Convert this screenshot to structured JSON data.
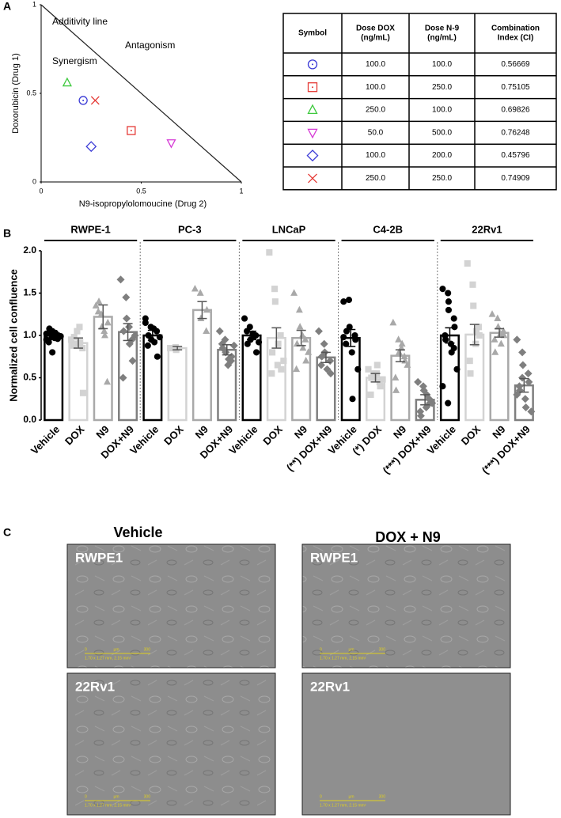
{
  "panel_labels": [
    "A",
    "B",
    "C"
  ],
  "chart_data": [
    {
      "type": "scatter",
      "xlabel": "N9-isopropylolomoucine (Drug 2)",
      "ylabel": "Doxorubicin (Drug 1)",
      "xlim": [
        0,
        1
      ],
      "ylim": [
        0,
        1
      ],
      "xticks": [
        0,
        0.5,
        1
      ],
      "yticks": [
        0,
        0.5,
        1
      ],
      "annotations": [
        "Additivity line",
        "Antagonism",
        "Synergism"
      ],
      "additivity_line": {
        "x": [
          0,
          1
        ],
        "y": [
          1,
          0
        ]
      },
      "series": [
        {
          "marker": "circle",
          "color": "#3b3bd6",
          "x": [
            0.21
          ],
          "y": [
            0.46
          ]
        },
        {
          "marker": "square",
          "color": "#e53935",
          "x": [
            0.45
          ],
          "y": [
            0.29
          ]
        },
        {
          "marker": "triangle",
          "color": "#3fc93f",
          "x": [
            0.13
          ],
          "y": [
            0.56
          ]
        },
        {
          "marker": "triangle-down",
          "color": "#d63bd6",
          "x": [
            0.65
          ],
          "y": [
            0.22
          ]
        },
        {
          "marker": "diamond",
          "color": "#3b3bd6",
          "x": [
            0.25
          ],
          "y": [
            0.2
          ]
        },
        {
          "marker": "x",
          "color": "#e53935",
          "x": [
            0.27
          ],
          "y": [
            0.46
          ]
        }
      ]
    },
    {
      "type": "bar",
      "ylabel": "Normalized cell confluence",
      "ylim": [
        0,
        2
      ],
      "yticks": [
        {
          "value": 0,
          "label": "0.0"
        },
        {
          "value": 0.5,
          "label": "0.5"
        },
        {
          "value": 1,
          "label": "1.0"
        },
        {
          "value": 1.5,
          "label": "1.5"
        },
        {
          "value": 2,
          "label": "2.0"
        }
      ],
      "groups": [
        "RWPE-1",
        "PC-3",
        "LNCaP",
        "C4-2B",
        "22Rv1"
      ],
      "categories": [
        "Vehicle",
        "DOX",
        "N9",
        "DOX+N9",
        "Vehicle",
        "DOX",
        "N9",
        "DOX+N9",
        "Vehicle",
        "DOX",
        "N9",
        "(**) DOX+N9",
        "Vehicle",
        "(*) DOX",
        "N9",
        "(***) DOX+N9",
        "Vehicle",
        "DOX",
        "N9",
        "(***) DOX+N9"
      ],
      "treatment_colors": [
        "#000000",
        "#d3d3d3",
        "#a9a9a9",
        "#7f7f7f"
      ],
      "treatment_markers": [
        "circle",
        "square",
        "triangle",
        "diamond"
      ],
      "values": [
        1.0,
        0.91,
        1.22,
        1.04,
        1.0,
        0.85,
        1.3,
        0.83,
        1.0,
        0.97,
        0.97,
        0.74,
        0.97,
        0.5,
        0.76,
        0.24,
        1.0,
        1.01,
        1.03,
        0.41
      ],
      "errors": [
        0.04,
        0.06,
        0.14,
        0.1,
        0.06,
        0.02,
        0.1,
        0.06,
        0.05,
        0.12,
        0.09,
        0.06,
        0.1,
        0.05,
        0.07,
        0.06,
        0.09,
        0.12,
        0.05,
        0.08
      ],
      "points": [
        [
          1.02,
          0.98,
          1.05,
          0.96,
          1.0,
          0.92,
          1.08,
          0.97,
          1.03,
          0.99,
          0.95,
          1.01,
          0.8
        ],
        [
          0.95,
          0.9,
          1.05,
          0.85,
          0.32,
          0.88,
          0.98,
          1.1,
          0.92
        ],
        [
          1.35,
          1.25,
          1.1,
          0.45,
          1.15,
          1.28,
          1.4,
          1.05,
          1.0
        ],
        [
          1.66,
          1.45,
          1.2,
          0.95,
          0.7,
          0.5,
          1.05,
          1.1,
          0.9,
          1.0
        ],
        [
          1.15,
          1.1,
          0.95,
          1.05,
          0.75,
          0.88,
          1.0,
          1.08,
          0.92,
          0.98,
          1.2
        ],
        [
          0.85,
          0.86,
          0.83
        ],
        [
          1.55,
          1.5,
          1.2,
          1.05,
          1.3
        ],
        [
          1.05,
          0.95,
          0.8,
          0.7,
          0.75,
          0.9,
          0.85,
          0.65,
          0.72,
          0.88
        ],
        [
          1.2,
          1.1,
          0.95,
          1.0,
          0.8,
          1.05,
          0.9,
          1.02,
          0.98,
          0.92
        ],
        [
          1.98,
          1.55,
          1.4,
          1.0,
          0.6,
          0.55,
          0.8,
          0.65,
          0.9,
          0.7
        ],
        [
          1.5,
          1.3,
          1.1,
          0.95,
          0.7,
          0.6,
          0.9,
          1.0,
          0.85,
          0.8
        ],
        [
          1.05,
          0.9,
          0.8,
          0.7,
          0.55,
          0.65,
          0.75,
          0.6
        ],
        [
          1.4,
          1.42,
          1.1,
          1.0,
          0.95,
          0.9,
          1.05,
          0.8,
          0.25,
          0.6,
          0.98
        ],
        [
          0.6,
          0.55,
          0.5,
          0.45,
          0.4,
          0.3,
          0.5,
          0.55,
          0.65,
          0.48
        ],
        [
          1.15,
          0.95,
          0.8,
          0.75,
          0.7,
          0.5,
          0.35,
          0.85,
          0.9,
          0.65
        ],
        [
          0.45,
          0.4,
          0.35,
          0.25,
          0.2,
          0.1,
          0.05,
          0.15,
          0.3,
          0.2
        ],
        [
          1.55,
          1.5,
          1.3,
          1.2,
          1.1,
          1.0,
          0.95,
          0.9,
          0.8,
          0.6,
          0.4,
          0.2,
          1.4,
          0.85
        ],
        [
          1.85,
          1.6,
          1.35,
          1.1,
          1.0,
          0.7,
          0.55,
          0.9,
          1.05
        ],
        [
          1.25,
          1.2,
          1.1,
          1.05,
          1.0,
          0.95,
          0.8,
          1.02,
          0.9
        ],
        [
          0.95,
          0.8,
          0.65,
          0.55,
          0.45,
          0.4,
          0.35,
          0.25,
          0.15,
          0.1,
          0.3,
          0.5
        ]
      ]
    }
  ],
  "table": {
    "columns": [
      [
        "Symbol"
      ],
      [
        "Dose DOX",
        "(ng/mL)"
      ],
      [
        "Dose N-9",
        "(ng/mL)"
      ],
      [
        "Combination",
        "Index (CI)"
      ]
    ],
    "rows": [
      [
        "100.0",
        "100.0",
        "0.56669"
      ],
      [
        "100.0",
        "250.0",
        "0.75105"
      ],
      [
        "250.0",
        "100.0",
        "0.69826"
      ],
      [
        "50.0",
        "500.0",
        "0.76248"
      ],
      [
        "100.0",
        "200.0",
        "0.45796"
      ],
      [
        "250.0",
        "250.0",
        "0.74909"
      ]
    ]
  },
  "micrographs": {
    "columns": [
      "Vehicle",
      "DOX + N9"
    ],
    "rows": [
      "RWPE1",
      "22Rv1"
    ],
    "scale_bar": {
      "start": "0",
      "unit": "µm",
      "end": "300",
      "caption": "1.70 x 1.27 mm, 2.15 mm²"
    }
  }
}
